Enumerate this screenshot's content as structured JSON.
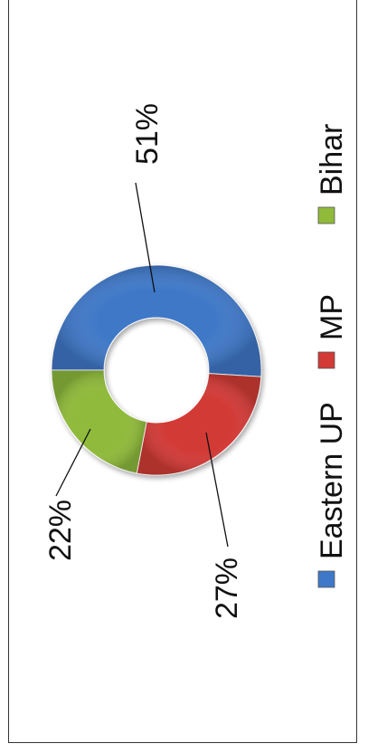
{
  "chart_data": {
    "type": "donut",
    "categories": [
      "Eastern UP",
      "MP",
      "Bihar"
    ],
    "values": [
      51,
      27,
      22
    ],
    "data_labels": [
      "51%",
      "27%",
      "22%"
    ],
    "colors": [
      "#3f78c8",
      "#d23a36",
      "#8fba3a"
    ],
    "legend_position": "bottom",
    "orientation": "rotated 90° counter-clockwise"
  }
}
